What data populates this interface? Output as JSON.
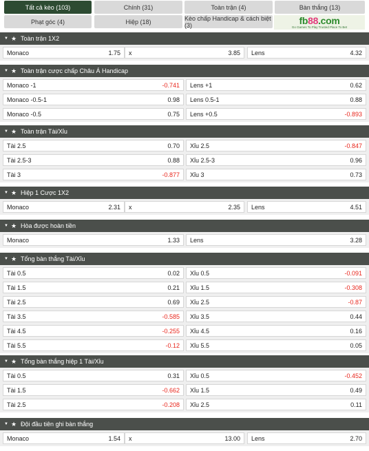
{
  "tabs": [
    {
      "label": "Tất cả kèo (103)",
      "active": true
    },
    {
      "label": "Chính (31)",
      "active": false
    },
    {
      "label": "Toàn trận (4)",
      "active": false
    },
    {
      "label": "Bàn thắng (13)",
      "active": false
    },
    {
      "label": "Phạt góc (4)",
      "active": false
    },
    {
      "label": "Hiệp (18)",
      "active": false
    },
    {
      "label": "Kèo chấp Handicap & cách biệt (3)",
      "active": false
    }
  ],
  "logo": {
    "text_a": "fb",
    "text_b": "88",
    "text_c": ".com",
    "tagline": "Go Games To Play  Trusted Place To Bet"
  },
  "colors": {
    "header_bg": "#4b4f4b",
    "active_tab": "#2d4b32",
    "negative_odds": "#e8261c"
  },
  "sections": [
    {
      "title": "Toàn trận 1X2",
      "layout": "three",
      "rows": [
        [
          [
            "Monaco",
            "1.75"
          ],
          [
            "x",
            "3.85"
          ],
          [
            "Lens",
            "4.32"
          ]
        ]
      ]
    },
    {
      "title": "Toàn trận cược chấp Châu Á Handicap",
      "layout": "two",
      "rows": [
        [
          [
            "Monaco -1",
            "-0.741"
          ],
          [
            "Lens +1",
            "0.62"
          ]
        ],
        [
          [
            "Monaco -0.5-1",
            "0.98"
          ],
          [
            "Lens 0.5-1",
            "0.88"
          ]
        ],
        [
          [
            "Monaco -0.5",
            "0.75"
          ],
          [
            "Lens +0.5",
            "-0.893"
          ]
        ]
      ]
    },
    {
      "title": "Toàn trận Tài/Xỉu",
      "layout": "two",
      "rows": [
        [
          [
            "Tài 2.5",
            "0.70"
          ],
          [
            "Xỉu 2.5",
            "-0.847"
          ]
        ],
        [
          [
            "Tài 2.5-3",
            "0.88"
          ],
          [
            "Xỉu 2.5-3",
            "0.96"
          ]
        ],
        [
          [
            "Tài 3",
            "-0.877"
          ],
          [
            "Xỉu 3",
            "0.73"
          ]
        ]
      ]
    },
    {
      "title": "Hiệp 1 Cược 1X2",
      "layout": "three",
      "rows": [
        [
          [
            "Monaco",
            "2.31"
          ],
          [
            "x",
            "2.35"
          ],
          [
            "Lens",
            "4.51"
          ]
        ]
      ]
    },
    {
      "title": "Hòa được hoàn tiền",
      "layout": "two",
      "rows": [
        [
          [
            "Monaco",
            "1.33"
          ],
          [
            "Lens",
            "3.28"
          ]
        ]
      ]
    },
    {
      "title": "Tổng bàn thắng Tài/Xỉu",
      "layout": "two",
      "rows": [
        [
          [
            "Tài 0.5",
            "0.02"
          ],
          [
            "Xỉu 0.5",
            "-0.091"
          ]
        ],
        [
          [
            "Tài 1.5",
            "0.21"
          ],
          [
            "Xỉu 1.5",
            "-0.308"
          ]
        ],
        [
          [
            "Tài 2.5",
            "0.69"
          ],
          [
            "Xỉu 2.5",
            "-0.87"
          ]
        ],
        [
          [
            "Tài 3.5",
            "-0.585"
          ],
          [
            "Xỉu 3.5",
            "0.44"
          ]
        ],
        [
          [
            "Tài 4.5",
            "-0.255"
          ],
          [
            "Xỉu 4.5",
            "0.16"
          ]
        ],
        [
          [
            "Tài 5.5",
            "-0.12"
          ],
          [
            "Xỉu 5.5",
            "0.05"
          ]
        ]
      ]
    },
    {
      "title": "Tổng bàn thắng hiệp 1 Tài/Xỉu",
      "layout": "two",
      "rows": [
        [
          [
            "Tài 0.5",
            "0.31"
          ],
          [
            "Xỉu 0.5",
            "-0.452"
          ]
        ],
        [
          [
            "Tài 1.5",
            "-0.662"
          ],
          [
            "Xỉu 1.5",
            "0.49"
          ]
        ],
        [
          [
            "Tài 2.5",
            "-0.208"
          ],
          [
            "Xỉu 2.5",
            "0.11"
          ]
        ]
      ]
    },
    {
      "title": "Đội đầu tiên ghi bàn thắng",
      "layout": "three",
      "rows": [
        [
          [
            "Monaco",
            "1.54"
          ],
          [
            "x",
            "13.00"
          ],
          [
            "Lens",
            "2.70"
          ]
        ]
      ]
    }
  ]
}
